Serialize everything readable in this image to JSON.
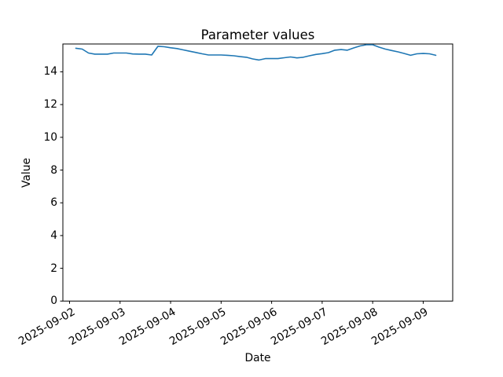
{
  "figure": {
    "background": "#ffffff",
    "title": "Parameter values",
    "xlabel": "Date",
    "ylabel": "Value"
  },
  "chart_data": {
    "type": "line",
    "title": "Parameter values",
    "xlabel": "Date",
    "ylabel": "Value",
    "grid": false,
    "legend": false,
    "line_color": "#1f77b4",
    "axis_color": "#000000",
    "ylim": [
      0,
      15.7
    ],
    "yticks": [
      0,
      2,
      4,
      6,
      8,
      10,
      12,
      14
    ],
    "xticks": [
      "2025-09-02",
      "2025-09-03",
      "2025-09-04",
      "2025-09-05",
      "2025-09-06",
      "2025-09-07",
      "2025-09-08",
      "2025-09-09"
    ],
    "x": [
      "2025-09-02T03:00",
      "2025-09-02T06:00",
      "2025-09-02T09:00",
      "2025-09-02T12:00",
      "2025-09-02T15:00",
      "2025-09-02T18:00",
      "2025-09-02T21:00",
      "2025-09-03T00:00",
      "2025-09-03T03:00",
      "2025-09-03T06:00",
      "2025-09-03T09:00",
      "2025-09-03T12:00",
      "2025-09-03T15:00",
      "2025-09-03T18:00",
      "2025-09-03T21:00",
      "2025-09-04T00:00",
      "2025-09-04T03:00",
      "2025-09-04T06:00",
      "2025-09-04T09:00",
      "2025-09-04T12:00",
      "2025-09-04T15:00",
      "2025-09-04T18:00",
      "2025-09-04T21:00",
      "2025-09-05T00:00",
      "2025-09-05T03:00",
      "2025-09-05T06:00",
      "2025-09-05T09:00",
      "2025-09-05T12:00",
      "2025-09-05T15:00",
      "2025-09-05T18:00",
      "2025-09-05T21:00",
      "2025-09-06T00:00",
      "2025-09-06T03:00",
      "2025-09-06T06:00",
      "2025-09-06T09:00",
      "2025-09-06T12:00",
      "2025-09-06T15:00",
      "2025-09-06T18:00",
      "2025-09-06T21:00",
      "2025-09-07T00:00",
      "2025-09-07T03:00",
      "2025-09-07T06:00",
      "2025-09-07T09:00",
      "2025-09-07T12:00",
      "2025-09-07T15:00",
      "2025-09-07T18:00",
      "2025-09-07T21:00",
      "2025-09-08T00:00",
      "2025-09-08T03:00",
      "2025-09-08T06:00",
      "2025-09-08T09:00",
      "2025-09-08T12:00",
      "2025-09-08T15:00",
      "2025-09-08T18:00",
      "2025-09-08T21:00",
      "2025-09-09T00:00",
      "2025-09-09T03:00",
      "2025-09-09T06:00"
    ],
    "values": [
      15.44,
      15.39,
      15.15,
      15.08,
      15.08,
      15.08,
      15.15,
      15.15,
      15.15,
      15.09,
      15.08,
      15.08,
      15.03,
      15.56,
      15.53,
      15.47,
      15.42,
      15.34,
      15.26,
      15.18,
      15.1,
      15.03,
      15.03,
      15.03,
      15.01,
      14.98,
      14.93,
      14.89,
      14.79,
      14.72,
      14.81,
      14.81,
      14.81,
      14.86,
      14.91,
      14.85,
      14.89,
      14.98,
      15.06,
      15.11,
      15.17,
      15.32,
      15.36,
      15.32,
      15.46,
      15.58,
      15.65,
      15.65,
      15.51,
      15.39,
      15.3,
      15.22,
      15.12,
      15.01,
      15.1,
      15.12,
      15.1,
      15.01
    ]
  }
}
